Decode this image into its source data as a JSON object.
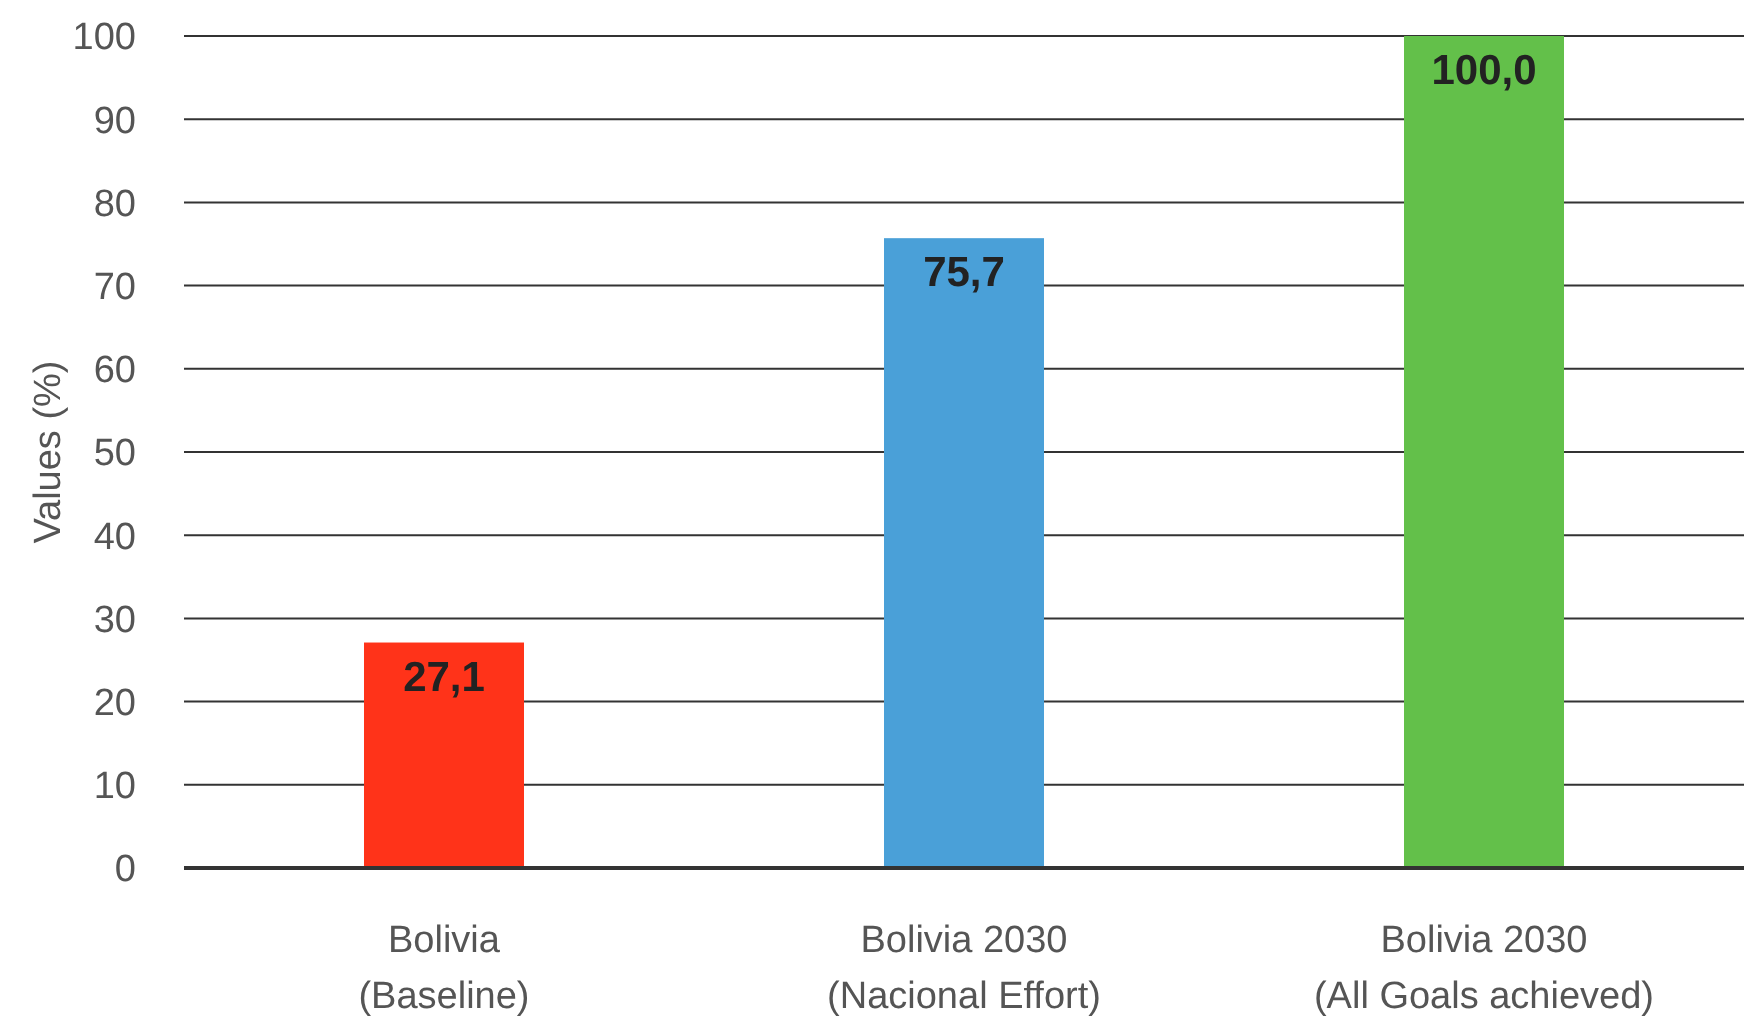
{
  "chart_data": {
    "type": "bar",
    "ylabel": "Values (%)",
    "categories": [
      "Bolivia (Baseline)",
      "Bolivia 2030 (Nacional Effort)",
      "Bolivia 2030 (All Goals achieved)"
    ],
    "values": [
      27.1,
      75.7,
      100.0
    ],
    "colors": [
      "#ff3319",
      "#4aa0d8",
      "#63c04a"
    ],
    "value_labels": [
      "27,1",
      "75,7",
      "100,0"
    ],
    "ylim": [
      0,
      100
    ],
    "yticks": [
      0,
      10,
      20,
      30,
      40,
      50,
      60,
      70,
      80,
      90,
      100
    ],
    "grid": "y"
  }
}
